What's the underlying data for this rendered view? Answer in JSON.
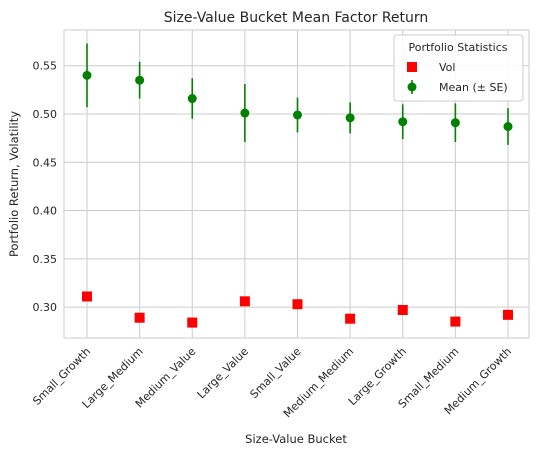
{
  "chart_data": {
    "type": "scatter",
    "title": "Size-Value Bucket Mean Factor Return",
    "xlabel": "Size-Value Bucket",
    "ylabel": "Portfolio Return, Volatility",
    "categories": [
      "Small_Growth",
      "Large_Medium",
      "Medium_Value",
      "Large_Value",
      "Small_Value",
      "Medium_Medium",
      "Large_Growth",
      "Small_Medium",
      "Medium_Growth"
    ],
    "ylim": [
      0.268,
      0.587
    ],
    "yticks": [
      "0.30",
      "0.35",
      "0.40",
      "0.45",
      "0.50",
      "0.55"
    ],
    "grid": true,
    "legend": {
      "title": "Portfolio Statistics",
      "placement": "top-right"
    },
    "series": [
      {
        "name": "Vol",
        "marker": "square",
        "color": "#ff0000",
        "values": [
          0.311,
          0.289,
          0.284,
          0.306,
          0.303,
          0.288,
          0.297,
          0.285,
          0.292
        ]
      },
      {
        "name": "Mean (± SE)",
        "marker": "circle",
        "color": "#008000",
        "values": [
          0.54,
          0.535,
          0.516,
          0.501,
          0.499,
          0.496,
          0.492,
          0.491,
          0.487
        ],
        "error": [
          0.033,
          0.019,
          0.021,
          0.03,
          0.018,
          0.016,
          0.018,
          0.02,
          0.019
        ]
      }
    ]
  }
}
